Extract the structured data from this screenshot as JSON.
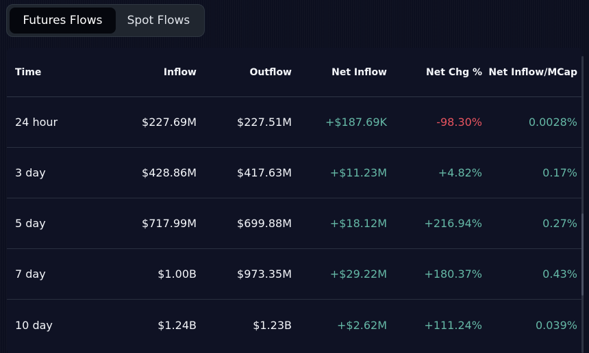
{
  "tabs": [
    {
      "label": "Futures Flows",
      "active": true
    },
    {
      "label": "Spot Flows",
      "active": false
    }
  ],
  "table": {
    "headers": {
      "time": "Time",
      "inflow": "Inflow",
      "outflow": "Outflow",
      "net_inflow": "Net Inflow",
      "net_chg": "Net Chg %",
      "net_inflow_mcap": "Net Inflow/MCap"
    },
    "rows": [
      {
        "time": "24 hour",
        "inflow": "$227.69M",
        "outflow": "$227.51M",
        "net_inflow": "+$187.69K",
        "net_chg": "-98.30%",
        "net_inflow_mcap": "0.0028%"
      },
      {
        "time": "3 day",
        "inflow": "$428.86M",
        "outflow": "$417.63M",
        "net_inflow": "+$11.23M",
        "net_chg": "+4.82%",
        "net_inflow_mcap": "0.17%"
      },
      {
        "time": "5 day",
        "inflow": "$717.99M",
        "outflow": "$699.88M",
        "net_inflow": "+$18.12M",
        "net_chg": "+216.94%",
        "net_inflow_mcap": "0.27%"
      },
      {
        "time": "7 day",
        "inflow": "$1.00B",
        "outflow": "$973.35M",
        "net_inflow": "+$29.22M",
        "net_chg": "+180.37%",
        "net_inflow_mcap": "0.43%"
      },
      {
        "time": "10 day",
        "inflow": "$1.24B",
        "outflow": "$1.23B",
        "net_inflow": "+$2.62M",
        "net_chg": "+111.24%",
        "net_inflow_mcap": "0.039%"
      }
    ]
  },
  "colors": {
    "background": "#0c0f1f",
    "positive": "#65b8a6",
    "negative": "#e8545f",
    "text": "#f3f5f9"
  }
}
